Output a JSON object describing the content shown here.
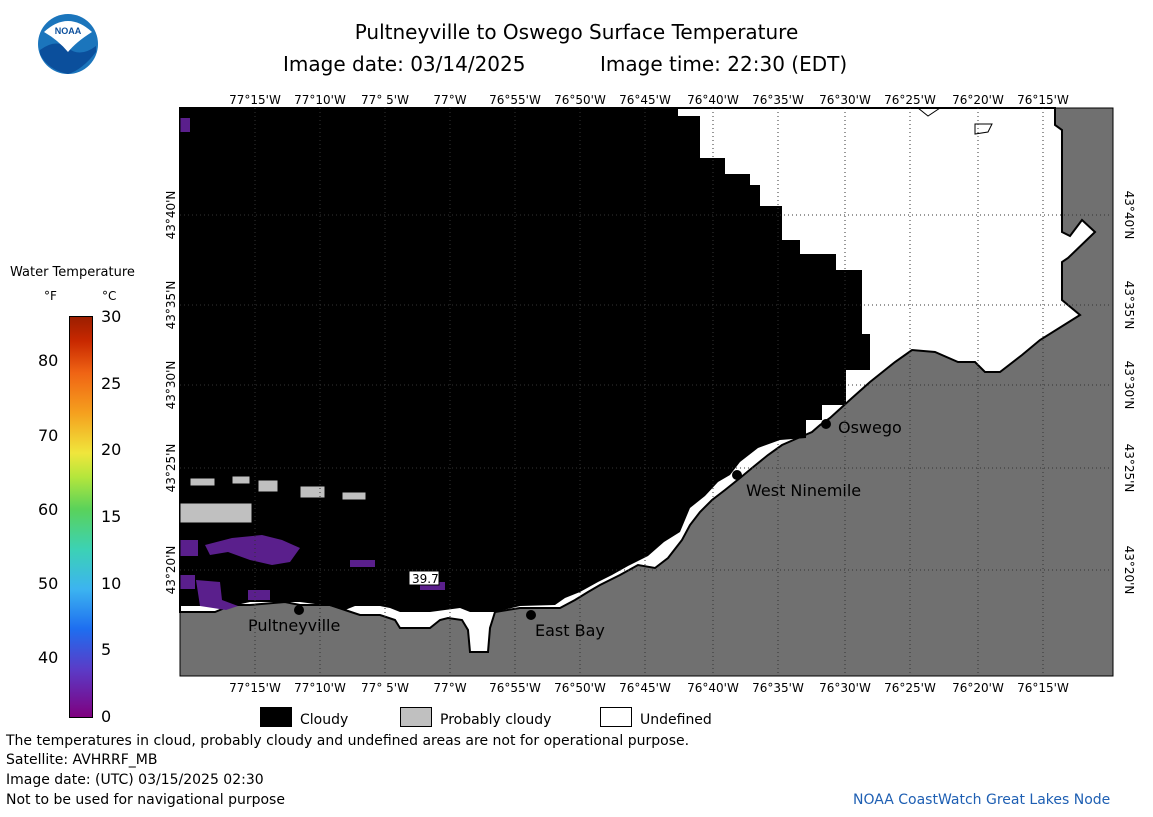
{
  "header": {
    "title": "Pultneyville to Oswego Surface Temperature",
    "image_date_label": "Image date: 03/14/2025",
    "image_time_label": "Image time: 22:30 (EDT)",
    "logo_text": "NOAA"
  },
  "colorbar": {
    "title": "Water Temperature",
    "unit_f": "°F",
    "unit_c": "°C",
    "f_ticks": [
      "80",
      "70",
      "60",
      "50",
      "40"
    ],
    "c_ticks": [
      "30",
      "25",
      "20",
      "15",
      "10",
      "5",
      "0"
    ],
    "min_c": 0,
    "max_c": 30
  },
  "map": {
    "lon_labels": [
      "77°15'W",
      "77°10'W",
      "77° 5'W",
      "77°W",
      "76°55'W",
      "76°50'W",
      "76°45'W",
      "76°40'W",
      "76°35'W",
      "76°30'W",
      "76°25'W",
      "76°20'W",
      "76°15'W"
    ],
    "lat_labels": [
      "43°40'N",
      "43°35'N",
      "43°30'N",
      "43°25'N",
      "43°20'N"
    ],
    "places": [
      "Pultneyville",
      "East Bay",
      "West Ninemile",
      "Oswego"
    ],
    "temperature_label": "39.7",
    "colors": {
      "cloudy": "#000000",
      "probably_cloudy": "#c0c0c0",
      "undefined": "#ffffff",
      "land": "#707070",
      "cold_water": "#5a1f8c"
    }
  },
  "legend": {
    "cloudy": "Cloudy",
    "probably_cloudy": "Probably cloudy",
    "undefined": "Undefined"
  },
  "footer": {
    "note": "The temperatures in cloud, probably cloudy and undefined areas are not for operational purpose.",
    "satellite": "Satellite: AVHRRF_MB",
    "utc_date": "Image date: (UTC) 03/15/2025  02:30",
    "nav_warning": "Not to be used for navigational purpose",
    "credit": "NOAA CoastWatch Great Lakes Node"
  }
}
